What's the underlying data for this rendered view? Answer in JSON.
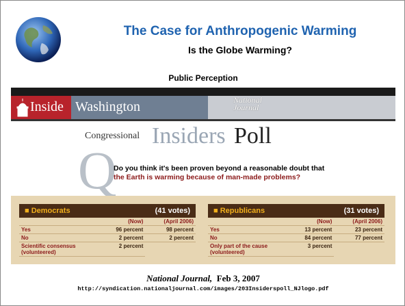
{
  "header": {
    "title": "The Case for Anthropogenic Warming",
    "subtitle": "Is the Globe Warming?",
    "section": "Public Perception"
  },
  "clipping": {
    "banner": {
      "inside": "Inside",
      "washington": "Washington",
      "national": "National",
      "journal": "Journal"
    },
    "poll_title": {
      "congressional": "Congressional",
      "insiders": "Insiders",
      "poll": "Poll"
    },
    "question": {
      "text": "Do you think it's been proven beyond a reasonable doubt that",
      "highlight": "the Earth is warming because of man-made problems?"
    },
    "tables": [
      {
        "party": "Democrats",
        "votes": "(41 votes)",
        "columns": [
          "(Now)",
          "(April 2006)"
        ],
        "rows": [
          [
            "Yes",
            "96 percent",
            "98 percent"
          ],
          [
            "No",
            "2 percent",
            "2 percent"
          ],
          [
            "Scientific consensus (volunteered)",
            "2 percent"
          ]
        ]
      },
      {
        "party": "Republicans",
        "votes": "(31 votes)",
        "columns": [
          "(Now)",
          "(April 2006)"
        ],
        "rows": [
          [
            "Yes",
            "13 percent",
            "23 percent"
          ],
          [
            "No",
            "84 percent",
            "77 percent"
          ],
          [
            "Only part of the cause (volunteered)",
            "3 percent"
          ]
        ]
      }
    ]
  },
  "footer": {
    "source": "National Journal,",
    "date": "Feb 3, 2007",
    "url": "http://syndication.nationaljournal.com/images/203Insiderspoll_NJlogo.pdf"
  }
}
